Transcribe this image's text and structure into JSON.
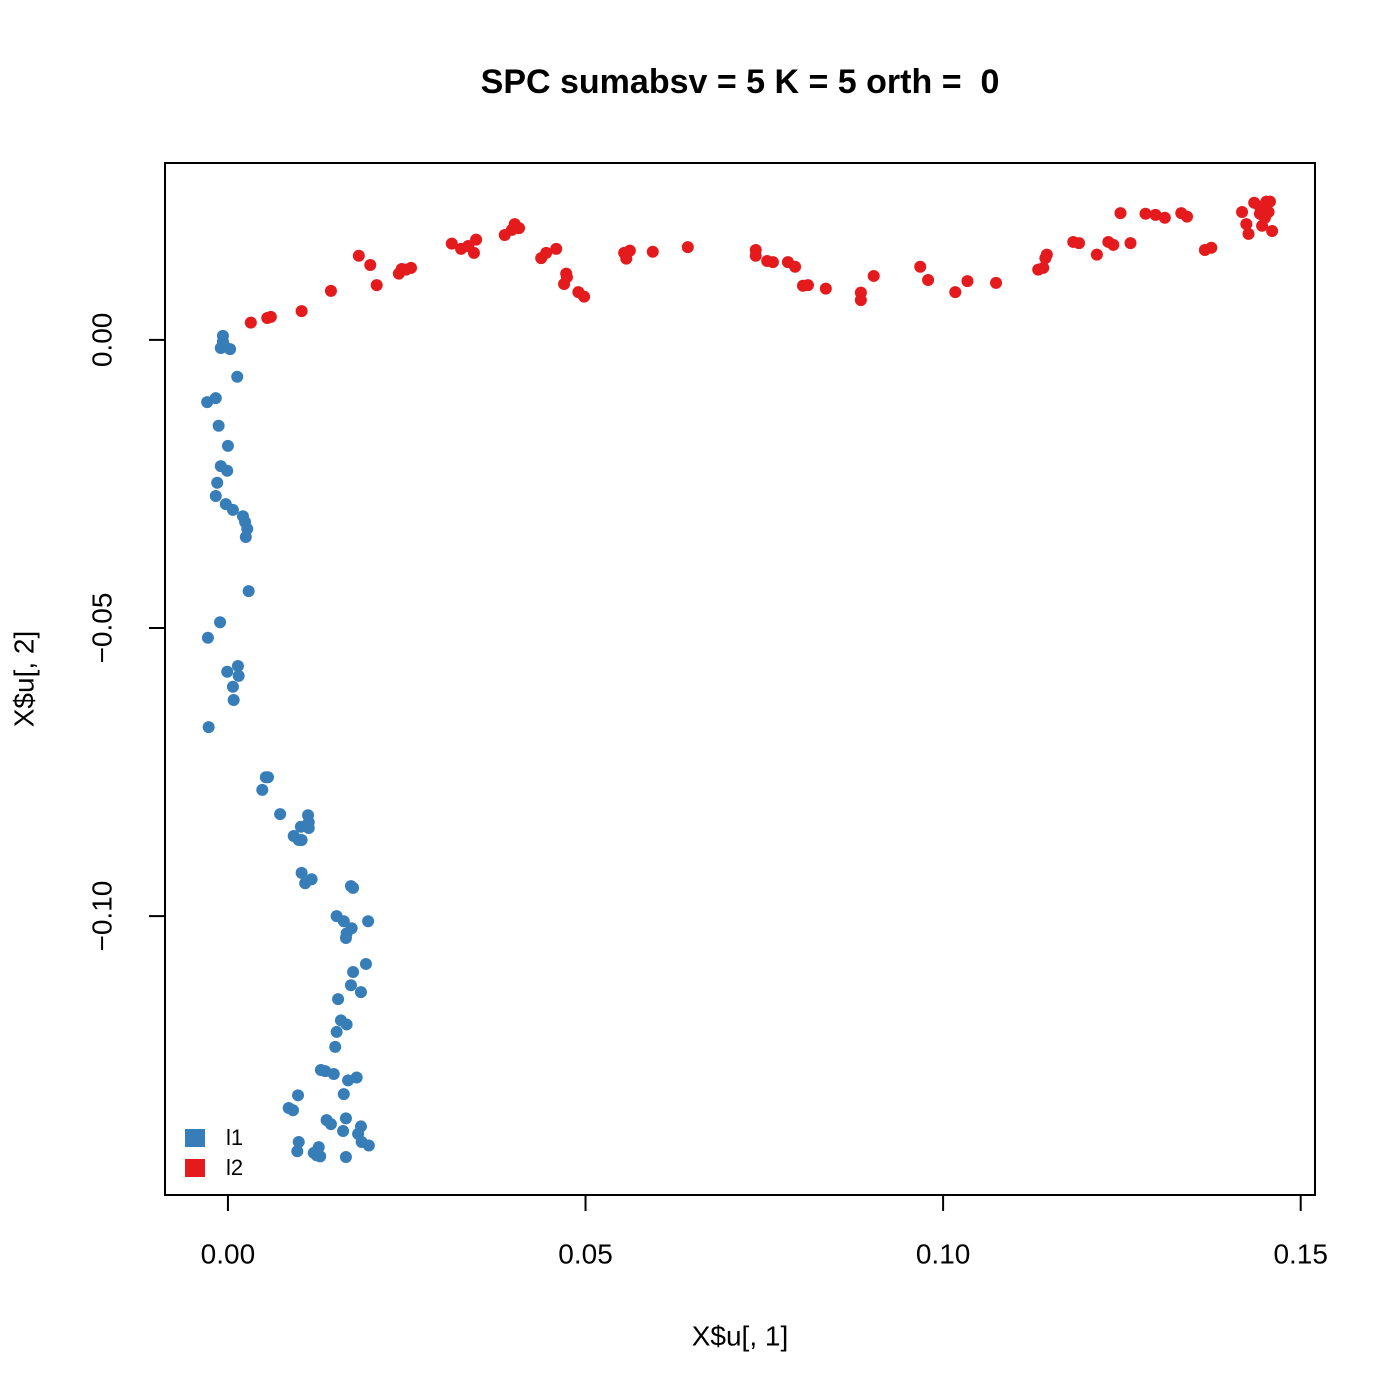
{
  "chart_data": {
    "type": "scatter",
    "title": "SPC sumabsv = 5 K = 5 orth =  0",
    "x_label": "X$u[, 1]",
    "y_label": "X$u[, 2]",
    "xlim": [
      -0.0088,
      0.152
    ],
    "ylim": [
      -0.1484,
      0.0307
    ],
    "xticks": [
      {
        "value": 0,
        "label": "0.00"
      },
      {
        "value": 0.05,
        "label": "0.05"
      },
      {
        "value": 0.1,
        "label": "0.10"
      },
      {
        "value": 0.15,
        "label": "0.15"
      }
    ],
    "yticks": [
      {
        "value": -0.1,
        "label": "−0.10"
      },
      {
        "value": -0.05,
        "label": "−0.05"
      },
      {
        "value": 0,
        "label": "0.00"
      }
    ],
    "legend_position": "bottomleft",
    "series": [
      {
        "name": "l1",
        "color": "#377eb8",
        "x": [
          -0.0007,
          -0.0007,
          -0.001,
          -0.0004,
          0.0003,
          0.0013,
          -0.0029,
          -0.0017,
          -0.0013,
          0.0,
          -0.001,
          -0.0001,
          -0.0015,
          -0.0017,
          -0.0003,
          0.0007,
          0.0021,
          0.0024,
          0.0027,
          0.0025,
          0.0029,
          -0.0011,
          -0.0028,
          -0.0001,
          0.0014,
          0.0015,
          0.0007,
          0.0008,
          -0.0027,
          0.0053,
          0.0056,
          0.0048,
          0.0073,
          0.0112,
          0.0113,
          0.0102,
          0.0092,
          0.0103,
          0.0099,
          0.0113,
          0.0103,
          0.0117,
          0.0108,
          0.0172,
          0.0175,
          0.0152,
          0.0162,
          0.0196,
          0.0166,
          0.0165,
          0.0173,
          0.0193,
          0.0175,
          0.0172,
          0.0186,
          0.0154,
          0.0158,
          0.0166,
          0.0152,
          0.015,
          0.013,
          0.0136,
          0.0148,
          0.0168,
          0.018,
          0.0098,
          0.0085,
          0.0091,
          0.0162,
          0.0138,
          0.0144,
          0.0165,
          0.0186,
          0.0161,
          0.0182,
          0.0099,
          0.0127,
          0.0197,
          0.0187,
          0.0097,
          0.012,
          0.0129,
          0.0124,
          0.0165
        ],
        "y": [
          0.0007,
          -0.0003,
          -0.0014,
          -0.0012,
          -0.0016,
          -0.0064,
          -0.0108,
          -0.0101,
          -0.0149,
          -0.0184,
          -0.0219,
          -0.0227,
          -0.0248,
          -0.0271,
          -0.0285,
          -0.0295,
          -0.0306,
          -0.0316,
          -0.0328,
          -0.0342,
          -0.0436,
          -0.049,
          -0.0517,
          -0.0576,
          -0.0566,
          -0.0583,
          -0.0602,
          -0.0625,
          -0.0672,
          -0.0759,
          -0.0759,
          -0.0781,
          -0.0823,
          -0.0825,
          -0.0837,
          -0.0845,
          -0.0861,
          -0.0868,
          -0.0868,
          -0.0847,
          -0.0925,
          -0.0936,
          -0.0943,
          -0.0948,
          -0.0951,
          -0.1,
          -0.1009,
          -0.1009,
          -0.103,
          -0.1038,
          -0.1021,
          -0.1083,
          -0.1097,
          -0.112,
          -0.1132,
          -0.1144,
          -0.1181,
          -0.1188,
          -0.1201,
          -0.1227,
          -0.1267,
          -0.1269,
          -0.1274,
          -0.1285,
          -0.128,
          -0.1311,
          -0.1333,
          -0.1337,
          -0.1309,
          -0.1354,
          -0.1361,
          -0.1351,
          -0.1365,
          -0.1373,
          -0.1378,
          -0.1392,
          -0.1401,
          -0.1398,
          -0.1392,
          -0.1408,
          -0.1411,
          -0.1417,
          -0.1415,
          -0.1418
        ]
      },
      {
        "name": "l2",
        "color": "#e41a1c",
        "x": [
          0.0032,
          0.0055,
          0.006,
          0.0103,
          0.0144,
          0.0183,
          0.0199,
          0.0208,
          0.0239,
          0.0243,
          0.0249,
          0.0256,
          0.0313,
          0.0326,
          0.0336,
          0.0344,
          0.0347,
          0.0387,
          0.0397,
          0.0401,
          0.0407,
          0.0438,
          0.0445,
          0.0459,
          0.047,
          0.0473,
          0.0474,
          0.049,
          0.0498,
          0.0554,
          0.0557,
          0.0562,
          0.0594,
          0.0643,
          0.0738,
          0.0738,
          0.0754,
          0.0762,
          0.0783,
          0.0793,
          0.0804,
          0.0811,
          0.0836,
          0.0885,
          0.0885,
          0.0903,
          0.0968,
          0.0979,
          0.1017,
          0.1034,
          0.1074,
          0.1133,
          0.114,
          0.1143,
          0.1145,
          0.1182,
          0.119,
          0.1215,
          0.1231,
          0.1238,
          0.1262,
          0.1248,
          0.1283,
          0.1297,
          0.131,
          0.1333,
          0.1341,
          0.1366,
          0.1375,
          0.1418,
          0.1424,
          0.1427,
          0.1435,
          0.1443,
          0.1446,
          0.1452,
          0.1455,
          0.1457,
          0.146,
          0.1443,
          0.145
        ],
        "y": [
          0.003,
          0.0038,
          0.004,
          0.005,
          0.0085,
          0.0146,
          0.013,
          0.0095,
          0.0115,
          0.0123,
          0.0122,
          0.0125,
          0.0167,
          0.0158,
          0.0163,
          0.0151,
          0.0174,
          0.0182,
          0.0191,
          0.0201,
          0.0194,
          0.0142,
          0.0151,
          0.0158,
          0.0097,
          0.0115,
          0.0109,
          0.0083,
          0.0075,
          0.0151,
          0.0141,
          0.0155,
          0.0153,
          0.0161,
          0.0156,
          0.0146,
          0.0137,
          0.0135,
          0.0135,
          0.0127,
          0.0094,
          0.0095,
          0.0089,
          0.0069,
          0.0082,
          0.0111,
          0.0127,
          0.0104,
          0.0083,
          0.0102,
          0.0099,
          0.0122,
          0.0125,
          0.0142,
          0.0148,
          0.017,
          0.0168,
          0.0148,
          0.017,
          0.0165,
          0.0168,
          0.022,
          0.0219,
          0.0217,
          0.0212,
          0.022,
          0.0214,
          0.0156,
          0.016,
          0.0222,
          0.0201,
          0.0184,
          0.0238,
          0.0231,
          0.0198,
          0.024,
          0.0222,
          0.024,
          0.0189,
          0.0219,
          0.0212
        ]
      }
    ]
  }
}
